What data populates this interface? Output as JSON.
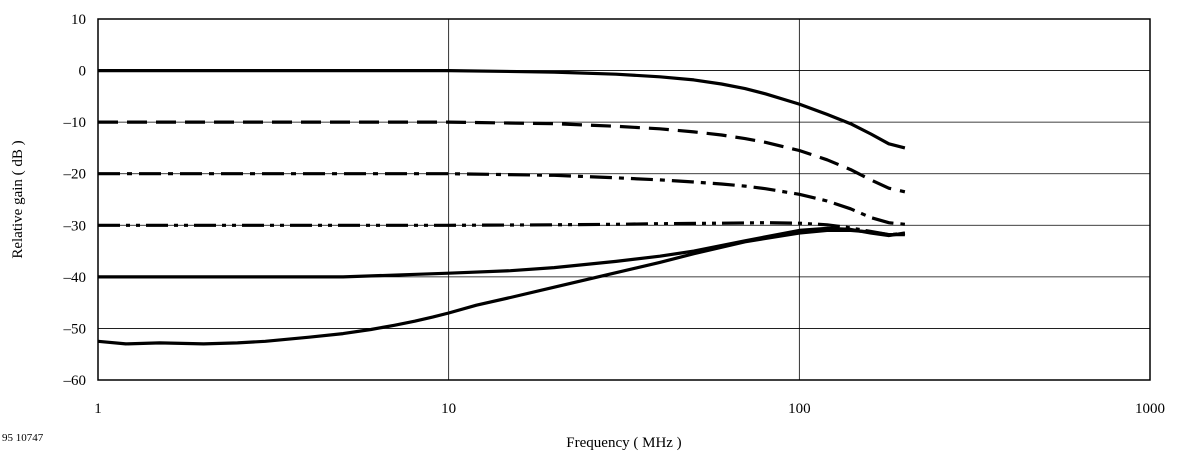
{
  "figure_id": "95 10747",
  "chart_data": {
    "type": "line",
    "xlabel": "Frequency ( MHz )",
    "ylabel": "Relative gain ( dB )",
    "xscale": "log",
    "xlim": [
      1,
      1000
    ],
    "ylim": [
      -60,
      10
    ],
    "xticks": [
      1,
      10,
      100,
      1000
    ],
    "xtick_labels": [
      "1",
      "10",
      "100",
      "1000"
    ],
    "yticks": [
      10,
      0,
      -10,
      -20,
      -30,
      -40,
      -50,
      -60
    ],
    "ytick_labels": [
      "10",
      "0",
      "–10",
      "–20",
      "–30",
      "–40",
      "–50",
      "–60"
    ],
    "grid": true,
    "series": [
      {
        "style": "solid",
        "x": [
          1,
          2,
          5,
          10,
          20,
          30,
          40,
          50,
          60,
          70,
          80,
          100,
          120,
          140,
          160,
          180,
          200
        ],
        "y": [
          0,
          0,
          0,
          0,
          -0.3,
          -0.7,
          -1.2,
          -1.8,
          -2.6,
          -3.5,
          -4.5,
          -6.5,
          -8.5,
          -10.3,
          -12.3,
          -14.2,
          -15
        ]
      },
      {
        "style": "dash",
        "x": [
          1,
          2,
          5,
          10,
          20,
          30,
          40,
          50,
          60,
          70,
          80,
          100,
          120,
          140,
          160,
          180,
          200
        ],
        "y": [
          -10,
          -10,
          -10,
          -10,
          -10.3,
          -10.8,
          -11.3,
          -11.9,
          -12.5,
          -13.2,
          -13.9,
          -15.5,
          -17.3,
          -19.2,
          -21.2,
          -22.8,
          -23.5
        ]
      },
      {
        "style": "dash-dot",
        "x": [
          1,
          2,
          5,
          10,
          20,
          30,
          40,
          50,
          60,
          70,
          80,
          100,
          120,
          140,
          160,
          180,
          200
        ],
        "y": [
          -20,
          -20,
          -20,
          -20,
          -20.3,
          -20.8,
          -21.2,
          -21.6,
          -22,
          -22.4,
          -22.9,
          -24,
          -25.3,
          -26.8,
          -28.5,
          -29.5,
          -29.8
        ]
      },
      {
        "style": "dash-dot-dot",
        "x": [
          1,
          2,
          5,
          10,
          20,
          30,
          40,
          60,
          80,
          100,
          120,
          140,
          160,
          180,
          200
        ],
        "y": [
          -30,
          -30,
          -30,
          -30,
          -29.9,
          -29.8,
          -29.7,
          -29.6,
          -29.5,
          -29.6,
          -29.9,
          -30.5,
          -31.2,
          -31.8,
          -31.6
        ]
      },
      {
        "style": "solid",
        "x": [
          1,
          2,
          5,
          10,
          15,
          20,
          30,
          40,
          50,
          70,
          100,
          120,
          140,
          160,
          180,
          200
        ],
        "y": [
          -40,
          -40,
          -40,
          -39.3,
          -38.8,
          -38.2,
          -37,
          -36,
          -35,
          -33,
          -31,
          -30.6,
          -30.8,
          -31.5,
          -32,
          -31.5
        ]
      },
      {
        "style": "solid",
        "x": [
          1,
          1.2,
          1.5,
          2,
          2.5,
          3,
          4,
          5,
          6,
          7,
          8,
          9,
          10,
          12,
          15,
          20,
          30,
          40,
          50,
          70,
          100,
          120,
          140,
          160,
          180,
          200
        ],
        "y": [
          -52.5,
          -53,
          -52.8,
          -53,
          -52.8,
          -52.5,
          -51.7,
          -51,
          -50.2,
          -49.4,
          -48.6,
          -47.8,
          -47,
          -45.5,
          -44,
          -42,
          -39.2,
          -37.2,
          -35.5,
          -33.2,
          -31.5,
          -31,
          -31,
          -31.3,
          -31.8,
          -31.8
        ]
      }
    ]
  }
}
